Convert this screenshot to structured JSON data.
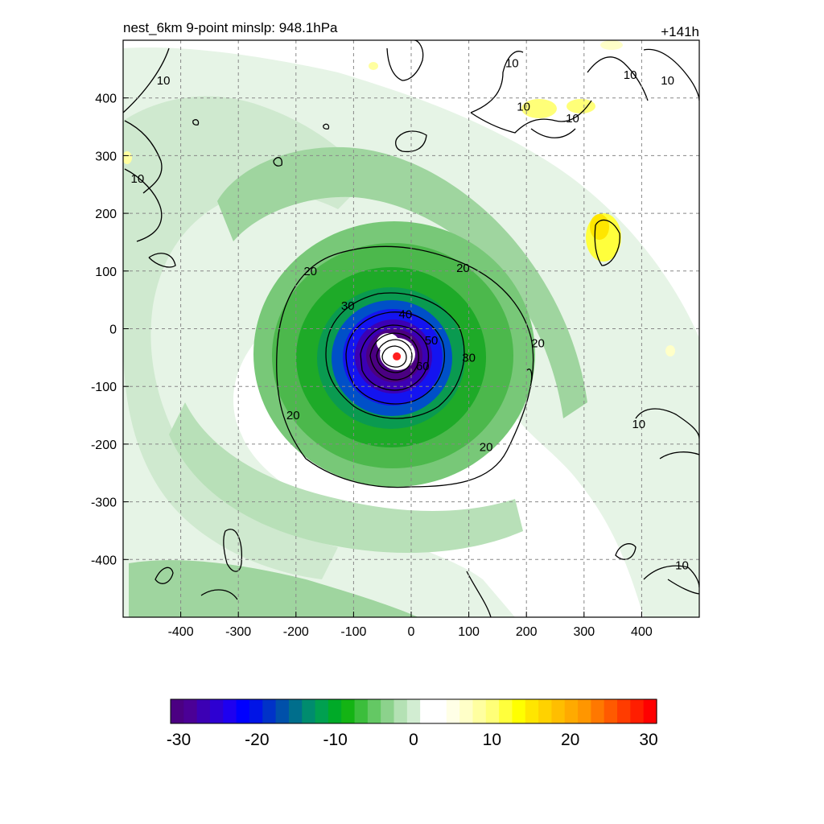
{
  "chart_data": {
    "type": "heatmap",
    "title": "nest_6km  9-point minslp: 948.1hPa",
    "time_label": "+141h",
    "xlabel": "",
    "ylabel": "",
    "xlim": [
      -500,
      500
    ],
    "ylim": [
      -500,
      500
    ],
    "x_ticks": [
      -400,
      -300,
      -200,
      -100,
      0,
      100,
      200,
      300,
      400
    ],
    "y_ticks": [
      400,
      300,
      200,
      100,
      0,
      -100,
      -200,
      -300,
      -400
    ],
    "grid": true,
    "grid_style": "dashed",
    "colorbar": {
      "range": [
        -30,
        30
      ],
      "ticks": [
        -30,
        -20,
        -10,
        0,
        10,
        20,
        30
      ],
      "colors": [
        "#4b0082",
        "#4b0096",
        "#3c00b4",
        "#2d00d2",
        "#1e00f0",
        "#0000ff",
        "#0014e6",
        "#0032c8",
        "#0050aa",
        "#006e8c",
        "#008c6e",
        "#00a050",
        "#00aa28",
        "#14b414",
        "#3cbe3c",
        "#64c864",
        "#8cd28c",
        "#b4e1b4",
        "#d2edd2",
        "#ffffff",
        "#ffffff",
        "#ffffe6",
        "#ffffc8",
        "#ffffa0",
        "#ffff78",
        "#ffff3c",
        "#ffff00",
        "#ffe600",
        "#ffd200",
        "#ffbe00",
        "#ffaa00",
        "#ff9600",
        "#ff7800",
        "#ff5a00",
        "#ff3c00",
        "#ff1e00",
        "#ff0000"
      ]
    },
    "contour_labels": [
      {
        "text": "10",
        "x": -430,
        "y": 430
      },
      {
        "text": "10",
        "x": 175,
        "y": 460
      },
      {
        "text": "10",
        "x": 380,
        "y": 440
      },
      {
        "text": "10",
        "x": 445,
        "y": 430
      },
      {
        "text": "10",
        "x": 195,
        "y": 385
      },
      {
        "text": "10",
        "x": 280,
        "y": 365
      },
      {
        "text": "10",
        "x": -475,
        "y": 260
      },
      {
        "text": "10",
        "x": 395,
        "y": -165
      },
      {
        "text": "10",
        "x": 470,
        "y": -410
      },
      {
        "text": "20",
        "x": -175,
        "y": 100
      },
      {
        "text": "20",
        "x": 90,
        "y": 105
      },
      {
        "text": "20",
        "x": 220,
        "y": -25
      },
      {
        "text": "20",
        "x": -205,
        "y": -150
      },
      {
        "text": "20",
        "x": 130,
        "y": -205
      },
      {
        "text": "30",
        "x": -110,
        "y": 40
      },
      {
        "text": "30",
        "x": 100,
        "y": -50
      },
      {
        "text": "40",
        "x": -10,
        "y": 25
      },
      {
        "text": "50",
        "x": 35,
        "y": -20
      },
      {
        "text": "60",
        "x": 20,
        "y": -65
      }
    ],
    "center_marker": {
      "x": -25,
      "y": -48
    }
  }
}
